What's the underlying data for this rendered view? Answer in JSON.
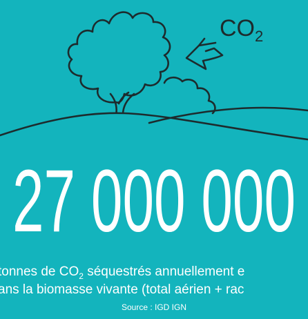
{
  "illustration_label": {
    "text": "CO",
    "subscript": "2"
  },
  "headline": "27 000 000",
  "caption": {
    "line1": {
      "before": "tonnes de CO",
      "subscript": "2",
      "after": " séquestrés annuellement e"
    },
    "line2": "ans la biomasse vivante (total aérien + rac"
  },
  "source": "Source : IGD IGN"
}
